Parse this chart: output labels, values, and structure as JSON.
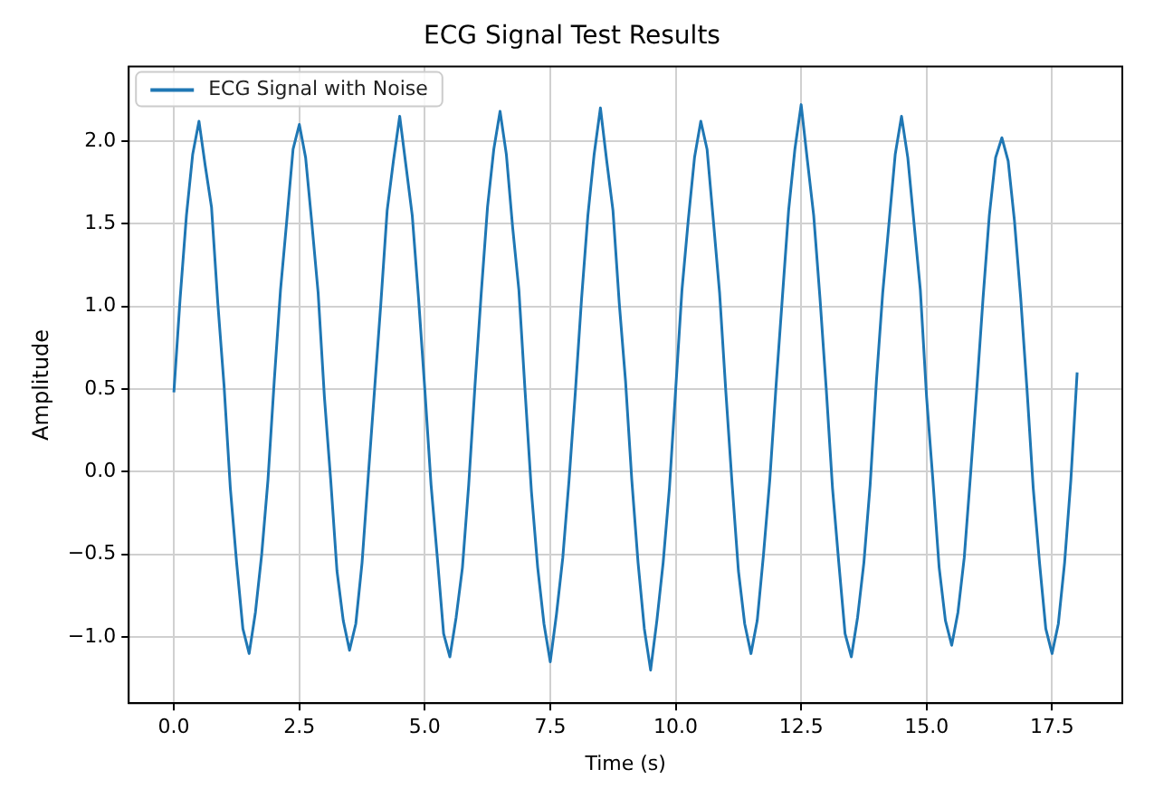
{
  "chart_data": {
    "type": "line",
    "title": "ECG Signal Test Results",
    "xlabel": "Time (s)",
    "ylabel": "Amplitude",
    "x": [
      0,
      0.125,
      0.25,
      0.375,
      0.5,
      0.625,
      0.75,
      0.875,
      1,
      1.125,
      1.25,
      1.375,
      1.5,
      1.625,
      1.75,
      1.875,
      2,
      2.125,
      2.25,
      2.375,
      2.5,
      2.625,
      2.75,
      2.875,
      3,
      3.125,
      3.25,
      3.375,
      3.5,
      3.625,
      3.75,
      3.875,
      4,
      4.125,
      4.25,
      4.375,
      4.5,
      4.625,
      4.75,
      4.875,
      5,
      5.125,
      5.25,
      5.375,
      5.5,
      5.625,
      5.75,
      5.875,
      6,
      6.125,
      6.25,
      6.375,
      6.5,
      6.625,
      6.75,
      6.875,
      7,
      7.125,
      7.25,
      7.375,
      7.5,
      7.625,
      7.75,
      7.875,
      8,
      8.125,
      8.25,
      8.375,
      8.5,
      8.625,
      8.75,
      8.875,
      9,
      9.125,
      9.25,
      9.375,
      9.5,
      9.625,
      9.75,
      9.875,
      10,
      10.125,
      10.25,
      10.375,
      10.5,
      10.625,
      10.75,
      10.875,
      11,
      11.125,
      11.25,
      11.375,
      11.5,
      11.625,
      11.75,
      11.875,
      12,
      12.125,
      12.25,
      12.375,
      12.5,
      12.625,
      12.75,
      12.875,
      13,
      13.125,
      13.25,
      13.375,
      13.5,
      13.625,
      13.75,
      13.875,
      14,
      14.125,
      14.25,
      14.375,
      14.5,
      14.625,
      14.75,
      14.875,
      15,
      15.125,
      15.25,
      15.375,
      15.5,
      15.625,
      15.75,
      15.875,
      16,
      16.125,
      16.25,
      16.375,
      16.5,
      16.625,
      16.75,
      16.875,
      17,
      17.125,
      17.25,
      17.375,
      17.5,
      17.625,
      17.75,
      17.875,
      18
    ],
    "series": [
      {
        "name": "ECG Signal with Noise",
        "color": "#1f77b4",
        "values": [
          0.48,
          1.05,
          1.55,
          1.92,
          2.12,
          1.85,
          1.6,
          1.02,
          0.52,
          -0.1,
          -0.55,
          -0.95,
          -1.1,
          -0.85,
          -0.5,
          -0.05,
          0.55,
          1.1,
          1.52,
          1.95,
          2.1,
          1.9,
          1.5,
          1.08,
          0.45,
          -0.05,
          -0.6,
          -0.9,
          -1.08,
          -0.92,
          -0.55,
          -0.02,
          0.5,
          1.02,
          1.58,
          1.88,
          2.15,
          1.85,
          1.55,
          1.05,
          0.5,
          -0.08,
          -0.52,
          -0.98,
          -1.12,
          -0.88,
          -0.58,
          -0.08,
          0.52,
          1.08,
          1.6,
          1.95,
          2.18,
          1.92,
          1.48,
          1.1,
          0.48,
          -0.12,
          -0.58,
          -0.92,
          -1.15,
          -0.86,
          -0.52,
          -0.05,
          0.48,
          1.05,
          1.55,
          1.92,
          2.2,
          1.88,
          1.58,
          1.02,
          0.55,
          -0.05,
          -0.55,
          -0.95,
          -1.2,
          -0.9,
          -0.55,
          -0.1,
          0.5,
          1.1,
          1.52,
          1.9,
          2.12,
          1.95,
          1.52,
          1.08,
          0.48,
          -0.08,
          -0.6,
          -0.92,
          -1.1,
          -0.9,
          -0.5,
          -0.05,
          0.52,
          1.05,
          1.58,
          1.95,
          2.22,
          1.88,
          1.55,
          1.05,
          0.5,
          -0.1,
          -0.55,
          -0.98,
          -1.12,
          -0.88,
          -0.55,
          -0.08,
          0.55,
          1.08,
          1.5,
          1.92,
          2.15,
          1.9,
          1.5,
          1.1,
          0.45,
          -0.05,
          -0.58,
          -0.9,
          -1.05,
          -0.85,
          -0.52,
          -0.02,
          0.5,
          1.05,
          1.55,
          1.9,
          2.02,
          1.88,
          1.52,
          1.05,
          0.5,
          -0.1,
          -0.55,
          -0.95,
          -1.1,
          -0.92,
          -0.55,
          -0.05,
          0.6
        ]
      }
    ],
    "xlim": [
      -0.9,
      18.9
    ],
    "xticks": [
      {
        "value": 0,
        "label": "0.0"
      },
      {
        "value": 2.5,
        "label": "2.5"
      },
      {
        "value": 5,
        "label": "5.0"
      },
      {
        "value": 7.5,
        "label": "7.5"
      },
      {
        "value": 10,
        "label": "10.0"
      },
      {
        "value": 12.5,
        "label": "12.5"
      },
      {
        "value": 15,
        "label": "15.0"
      },
      {
        "value": 17.5,
        "label": "17.5"
      }
    ],
    "ylim": [
      -1.4,
      2.45
    ],
    "yticks": [
      {
        "value": -1,
        "label": "−1.0"
      },
      {
        "value": -0.5,
        "label": "−0.5"
      },
      {
        "value": 0,
        "label": "0.0"
      },
      {
        "value": 0.5,
        "label": "0.5"
      },
      {
        "value": 1,
        "label": "1.0"
      },
      {
        "value": 1.5,
        "label": "1.5"
      },
      {
        "value": 2,
        "label": "2.0"
      }
    ],
    "grid": true,
    "legend": "top left"
  }
}
